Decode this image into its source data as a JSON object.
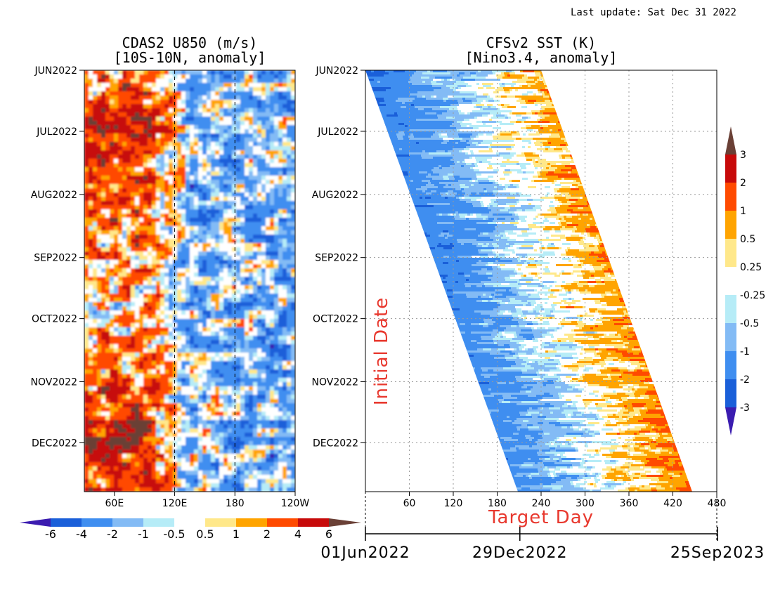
{
  "header": {
    "last_update": "Last update: Sat Dec 31 2022"
  },
  "colors": {
    "initial_date_label": "#e8382e",
    "target_day_label": "#e8382e"
  },
  "chart_data": [
    {
      "id": "u850",
      "type": "heatmap",
      "title": "CDAS2 U850 (m/s)",
      "subtitle": "[10S-10N, anomaly]",
      "xlabel": "",
      "ylabel": "",
      "x_ticks": [
        "60E",
        "120E",
        "180",
        "120W"
      ],
      "x_tick_values": [
        60,
        120,
        180,
        240
      ],
      "xlim": [
        30,
        240
      ],
      "y_ticks": [
        "JUN2022",
        "JUL2022",
        "AUG2022",
        "SEP2022",
        "OCT2022",
        "NOV2022",
        "DEC2022"
      ],
      "y_tick_values": [
        0,
        30,
        61,
        92,
        122,
        153,
        183
      ],
      "ylim": [
        0,
        207
      ],
      "reference_lines_x": [
        120,
        180
      ],
      "colorbar": {
        "labels": [
          "-6",
          "-4",
          "-2",
          "-1",
          "-0.5",
          "0.5",
          "1",
          "2",
          "4",
          "6"
        ],
        "colors": [
          "#3b1cb0",
          "#1a5fd9",
          "#3f8ef0",
          "#83bbf5",
          "#b6ecf7",
          "#ffffff",
          "#ffe88a",
          "#ffa400",
          "#ff4a00",
          "#c70a0a",
          "#6a4036"
        ]
      }
    },
    {
      "id": "sst",
      "type": "heatmap",
      "title": "CFSv2 SST (K)",
      "subtitle": "[Nino3.4, anomaly]",
      "xlabel": "Target Day",
      "ylabel": "Initial Date",
      "x_ticks": [
        "60",
        "120",
        "180",
        "240",
        "300",
        "360",
        "420",
        "480"
      ],
      "x_tick_values": [
        60,
        120,
        180,
        240,
        300,
        360,
        420,
        480
      ],
      "xlim": [
        0,
        480
      ],
      "y_ticks": [
        "JUN2022",
        "JUL2022",
        "AUG2022",
        "SEP2022",
        "OCT2022",
        "NOV2022",
        "DEC2022"
      ],
      "y_tick_values": [
        0,
        30,
        61,
        92,
        122,
        153,
        183
      ],
      "ylim": [
        0,
        207
      ],
      "target_dates": [
        "01Jun2022",
        "29Dec2022",
        "25Sep2023"
      ],
      "target_date_values": [
        0,
        211,
        481
      ],
      "colorbar": {
        "labels": [
          "3",
          "2",
          "1",
          "0.5",
          "0.25",
          "-0.25",
          "-0.5",
          "-1",
          "-2",
          "-3"
        ],
        "colors": [
          "#6a4036",
          "#c70a0a",
          "#ff4a00",
          "#ffa400",
          "#ffe88a",
          "#ffffff",
          "#b6ecf7",
          "#83bbf5",
          "#3f8ef0",
          "#1a5fd9",
          "#3b1cb0"
        ]
      }
    }
  ]
}
